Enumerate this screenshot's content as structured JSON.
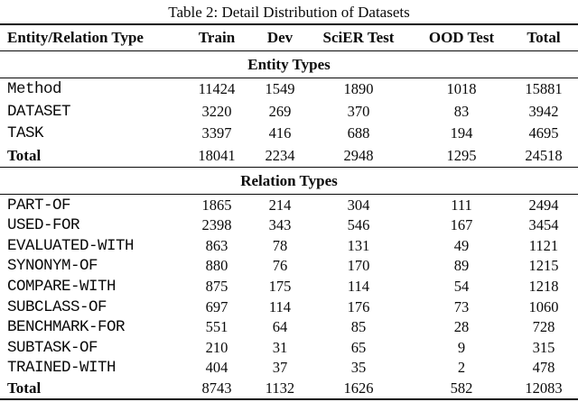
{
  "title": "Table 2: Detail Distribution of Datasets",
  "colors": {
    "background": "#ffffff",
    "text": "#0a0a0a",
    "rule": "#0a0a0a"
  },
  "table": {
    "columns": [
      "Entity/Relation Type",
      "Train",
      "Dev",
      "SciER Test",
      "OOD Test",
      "Total"
    ],
    "sections": [
      {
        "header": "Entity Types",
        "rows": [
          {
            "label": "Method",
            "style": "mono",
            "values": [
              11424,
              1549,
              1890,
              1018,
              15881
            ]
          },
          {
            "label": "DATASET",
            "style": "mono",
            "values": [
              3220,
              269,
              370,
              83,
              3942
            ]
          },
          {
            "label": "TASK",
            "style": "mono",
            "values": [
              3397,
              416,
              688,
              194,
              4695
            ]
          },
          {
            "label": "Total",
            "style": "bold",
            "values": [
              18041,
              2234,
              2948,
              1295,
              24518
            ]
          }
        ]
      },
      {
        "header": "Relation Types",
        "rows": [
          {
            "label": "PART-OF",
            "style": "mono",
            "values": [
              1865,
              214,
              304,
              111,
              2494
            ]
          },
          {
            "label": "USED-FOR",
            "style": "mono",
            "values": [
              2398,
              343,
              546,
              167,
              3454
            ]
          },
          {
            "label": "EVALUATED-WITH",
            "style": "mono",
            "values": [
              863,
              78,
              131,
              49,
              1121
            ]
          },
          {
            "label": "SYNONYM-OF",
            "style": "mono",
            "values": [
              880,
              76,
              170,
              89,
              1215
            ]
          },
          {
            "label": "COMPARE-WITH",
            "style": "mono",
            "values": [
              875,
              175,
              114,
              54,
              1218
            ]
          },
          {
            "label": "SUBCLASS-OF",
            "style": "mono",
            "values": [
              697,
              114,
              176,
              73,
              1060
            ]
          },
          {
            "label": "BENCHMARK-FOR",
            "style": "mono",
            "values": [
              551,
              64,
              85,
              28,
              728
            ]
          },
          {
            "label": "SUBTASK-OF",
            "style": "mono",
            "values": [
              210,
              31,
              65,
              9,
              315
            ]
          },
          {
            "label": "TRAINED-WITH",
            "style": "mono",
            "values": [
              404,
              37,
              35,
              2,
              478
            ]
          },
          {
            "label": "Total",
            "style": "bold",
            "values": [
              8743,
              1132,
              1626,
              582,
              12083
            ]
          }
        ]
      }
    ]
  }
}
